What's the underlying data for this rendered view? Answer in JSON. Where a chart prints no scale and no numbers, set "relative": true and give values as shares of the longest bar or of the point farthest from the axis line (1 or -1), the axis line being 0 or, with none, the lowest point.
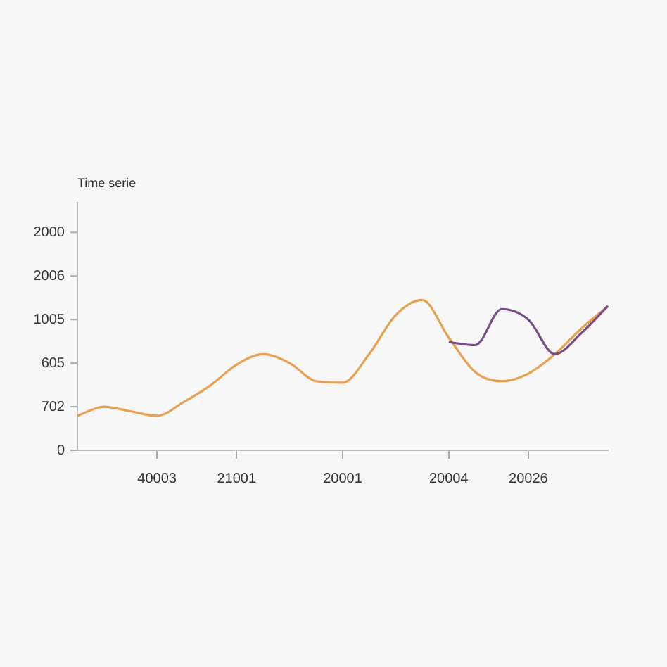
{
  "chart_data": {
    "type": "line",
    "title": "Time serie",
    "relative": true,
    "categories": [
      null,
      null,
      null,
      "40003",
      null,
      null,
      "21001",
      null,
      null,
      null,
      "20001",
      null,
      null,
      null,
      "20004",
      null,
      null,
      "20026",
      null,
      null,
      null
    ],
    "annotations": [
      "0",
      "702",
      "605",
      "1005",
      "2006",
      "2000"
    ],
    "grid": false,
    "legend": false,
    "marker": "none",
    "line_style": "solid",
    "series": [
      {
        "color": "#7a4a8a",
        "values": [
          null,
          null,
          null,
          null,
          null,
          null,
          null,
          null,
          null,
          null,
          null,
          null,
          null,
          null,
          0.72,
          0.7,
          0.94,
          0.87,
          0.64,
          0.78,
          0.96
        ]
      },
      {
        "color": "#e8a050",
        "values": [
          0.23,
          0.29,
          0.26,
          0.23,
          0.32,
          0.43,
          0.57,
          0.64,
          0.58,
          0.46,
          0.45,
          0.64,
          0.9,
          1,
          0.75,
          0.52,
          0.46,
          0.51,
          0.64,
          0.81,
          0.96
        ]
      }
    ]
  }
}
